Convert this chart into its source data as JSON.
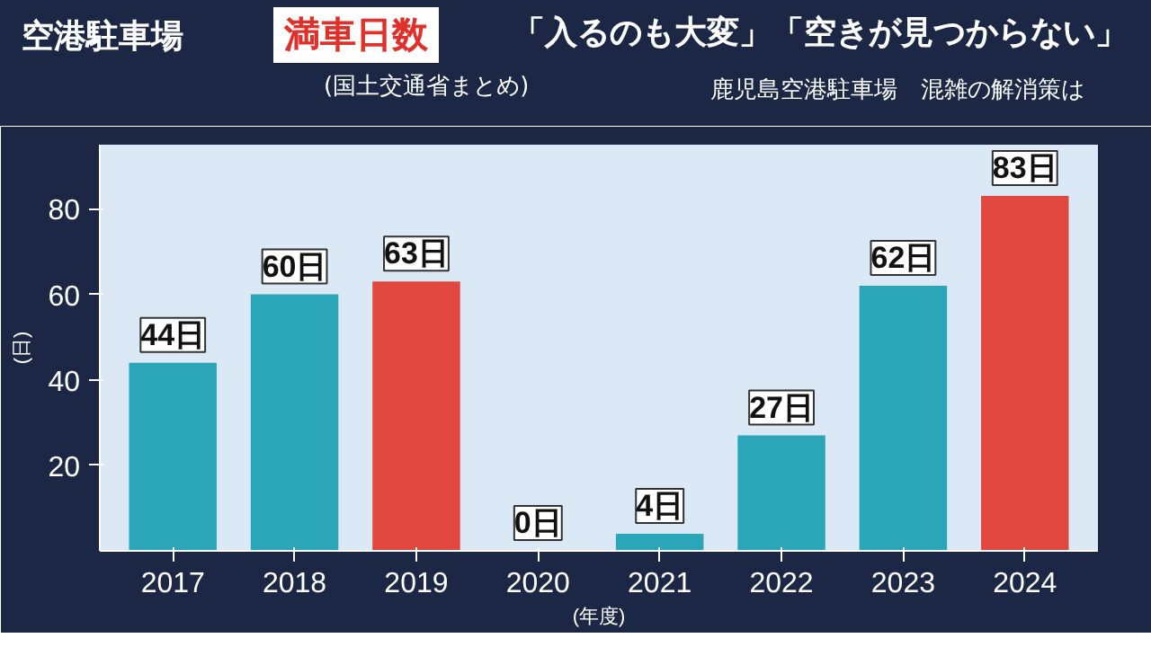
{
  "chart_data": {
    "type": "bar",
    "title": "空港駐車場",
    "subtitle": "満車日数",
    "annotations": [
      "(国土交通省まとめ)",
      "「入るのも大変」「空きが見つからない」",
      "鹿児島空港駐車場　混雑の解消策は"
    ],
    "xlabel": "(年度)",
    "ylabel": "(日)",
    "categories": [
      "2017",
      "2018",
      "2019",
      "2020",
      "2021",
      "2022",
      "2023",
      "2024"
    ],
    "values": [
      44,
      60,
      63,
      0,
      4,
      27,
      62,
      83
    ],
    "colors": [
      "#2aa6b8",
      "#2aa6b8",
      "#e0483f",
      "#2aa6b8",
      "#2aa6b8",
      "#2aa6b8",
      "#2aa6b8",
      "#e0483f"
    ],
    "value_labels": [
      "44日",
      "60日",
      "63日",
      "0日",
      "4日",
      "27日",
      "62日",
      "83日"
    ],
    "ylim": [
      0,
      95
    ],
    "yticks": [
      20,
      40,
      60,
      80
    ],
    "grid": false
  }
}
